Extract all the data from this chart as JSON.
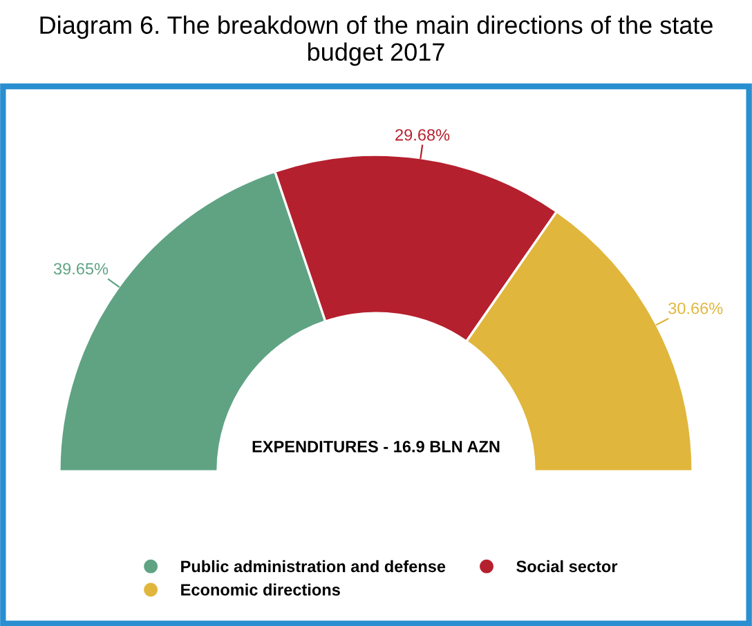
{
  "chart_data": {
    "type": "donut",
    "title": "Diagram 6. The breakdown of the main directions of the state budget 2017",
    "categories": [
      "Public administration and defense",
      "Social sector",
      "Economic directions"
    ],
    "values": [
      39.65,
      29.68,
      30.66
    ],
    "colors": [
      "#5fa383",
      "#b5202e",
      "#e0b63c"
    ],
    "value_labels": [
      "39.65%",
      "29.68%",
      "30.66%"
    ],
    "annotations": [
      "EXPENDITURES - 16.9 BLN AZN"
    ],
    "legend": "bottom"
  }
}
